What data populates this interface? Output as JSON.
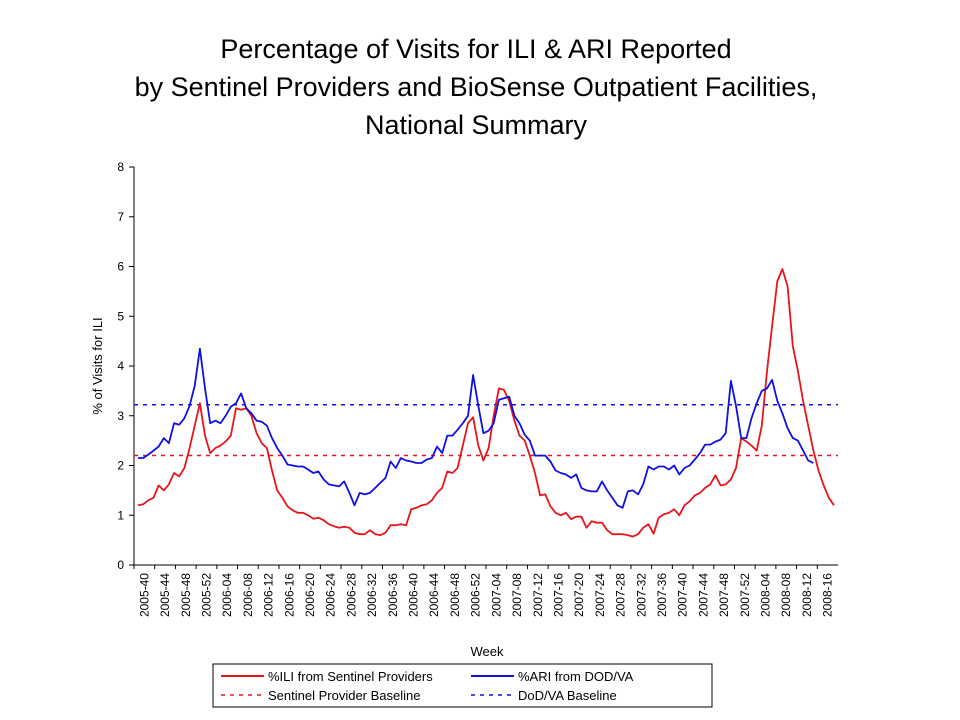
{
  "chart_data": {
    "type": "line",
    "title": [
      "Percentage of Visits for ILI & ARI Reported",
      "by Sentinel Providers and BioSense Outpatient Facilities,",
      "National Summary"
    ],
    "xlabel": "Week",
    "ylabel": "% of Visits for ILI",
    "ylim": [
      0,
      8
    ],
    "yticks": [
      0,
      1,
      2,
      3,
      4,
      5,
      6,
      7,
      8
    ],
    "grid": false,
    "legend_position": "bottom",
    "x_tick_labels": [
      "2005-40",
      "2005-44",
      "2005-48",
      "2005-52",
      "2006-04",
      "2006-08",
      "2006-12",
      "2006-16",
      "2006-20",
      "2006-24",
      "2006-28",
      "2006-32",
      "2006-36",
      "2006-40",
      "2006-44",
      "2006-48",
      "2006-52",
      "2007-04",
      "2007-08",
      "2007-12",
      "2007-16",
      "2007-20",
      "2007-24",
      "2007-28",
      "2007-32",
      "2007-36",
      "2007-40",
      "2007-44",
      "2007-48",
      "2007-52",
      "2008-04",
      "2008-08",
      "2008-12",
      "2008-16"
    ],
    "series": [
      {
        "name": "%ILI from Sentinel Providers",
        "color": "#e8141c",
        "style": "solid",
        "values": [
          1.2,
          1.22,
          1.3,
          1.35,
          1.6,
          1.5,
          1.62,
          1.85,
          1.78,
          1.95,
          2.35,
          2.8,
          3.25,
          2.6,
          2.25,
          2.35,
          2.4,
          2.48,
          2.6,
          3.15,
          3.12,
          3.15,
          3.0,
          2.65,
          2.45,
          2.35,
          1.9,
          1.5,
          1.35,
          1.18,
          1.1,
          1.05,
          1.05,
          1.0,
          0.93,
          0.95,
          0.9,
          0.82,
          0.78,
          0.75,
          0.77,
          0.75,
          0.65,
          0.62,
          0.62,
          0.7,
          0.62,
          0.6,
          0.65,
          0.8,
          0.8,
          0.82,
          0.8,
          1.12,
          1.15,
          1.2,
          1.22,
          1.3,
          1.45,
          1.55,
          1.88,
          1.85,
          1.95,
          2.4,
          2.85,
          2.97,
          2.4,
          2.1,
          2.35,
          3.0,
          3.55,
          3.52,
          3.3,
          2.9,
          2.6,
          2.5,
          2.2,
          1.85,
          1.4,
          1.42,
          1.18,
          1.05,
          1.0,
          1.05,
          0.92,
          0.97,
          0.97,
          0.75,
          0.88,
          0.85,
          0.85,
          0.7,
          0.62,
          0.62,
          0.62,
          0.6,
          0.57,
          0.62,
          0.75,
          0.82,
          0.63,
          0.95,
          1.02,
          1.05,
          1.12,
          1.0,
          1.2,
          1.28,
          1.4,
          1.45,
          1.55,
          1.62,
          1.8,
          1.6,
          1.62,
          1.72,
          1.95,
          2.55,
          2.48,
          2.4,
          2.3,
          2.8,
          3.9,
          4.8,
          5.7,
          5.95,
          5.6,
          4.4,
          3.9,
          3.3,
          2.8,
          2.3,
          1.9,
          1.6,
          1.35,
          1.2
        ]
      },
      {
        "name": "%ARI from DOD/VA",
        "color": "#1010e0",
        "style": "solid",
        "values": [
          2.15,
          2.15,
          2.22,
          2.3,
          2.38,
          2.55,
          2.45,
          2.85,
          2.82,
          2.95,
          3.2,
          3.6,
          4.35,
          3.55,
          2.85,
          2.9,
          2.85,
          3.0,
          3.18,
          3.25,
          3.45,
          3.15,
          3.05,
          2.9,
          2.88,
          2.8,
          2.55,
          2.35,
          2.2,
          2.02,
          2.0,
          1.98,
          1.98,
          1.92,
          1.85,
          1.88,
          1.72,
          1.62,
          1.6,
          1.58,
          1.68,
          1.45,
          1.2,
          1.45,
          1.42,
          1.45,
          1.55,
          1.65,
          1.75,
          2.08,
          1.95,
          2.15,
          2.1,
          2.08,
          2.05,
          2.05,
          2.12,
          2.15,
          2.38,
          2.25,
          2.6,
          2.6,
          2.72,
          2.85,
          3.0,
          3.82,
          3.2,
          2.65,
          2.7,
          2.85,
          3.32,
          3.35,
          3.38,
          3.0,
          2.85,
          2.62,
          2.5,
          2.2,
          2.2,
          2.2,
          2.08,
          1.9,
          1.85,
          1.82,
          1.75,
          1.82,
          1.55,
          1.5,
          1.48,
          1.48,
          1.68,
          1.5,
          1.35,
          1.2,
          1.15,
          1.48,
          1.5,
          1.42,
          1.62,
          1.98,
          1.92,
          1.98,
          1.98,
          1.92,
          2.0,
          1.82,
          1.95,
          2.0,
          2.12,
          2.25,
          2.42,
          2.42,
          2.48,
          2.52,
          2.65,
          3.7,
          3.2,
          2.55,
          2.55,
          2.95,
          3.25,
          3.5,
          3.55,
          3.72,
          3.3,
          3.05,
          2.75,
          2.55,
          2.5,
          2.3,
          2.1,
          2.05
        ]
      },
      {
        "name": "Sentinel Provider Baseline",
        "color": "#e8141c",
        "style": "dashed",
        "constant": 2.2
      },
      {
        "name": "DoD/VA Baseline",
        "color": "#1010e0",
        "style": "dashed",
        "constant": 3.22
      }
    ]
  }
}
